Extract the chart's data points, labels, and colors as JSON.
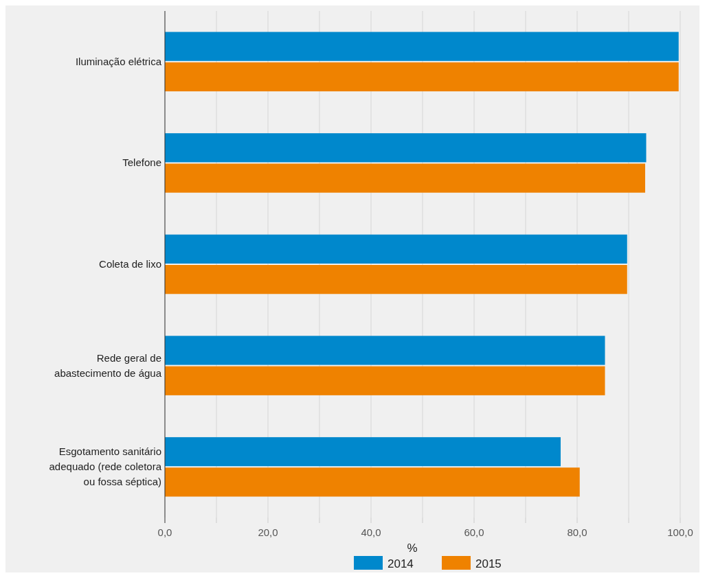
{
  "chart_data": {
    "type": "bar",
    "orientation": "horizontal",
    "xlabel": "%",
    "categories": [
      "Iluminação elétrica",
      "Telefone",
      "Coleta de lixo",
      "Rede geral de abastecimento de água",
      "Esgotamento sanitário adequado (rede coletora ou fossa séptica)"
    ],
    "series": [
      {
        "name": "2014",
        "color": "#0088cc",
        "values": [
          99.7,
          93.4,
          89.7,
          85.4,
          76.8
        ]
      },
      {
        "name": "2015",
        "color": "#ef8200",
        "values": [
          99.7,
          93.2,
          89.7,
          85.4,
          80.5
        ]
      }
    ],
    "xlim": [
      0,
      100
    ],
    "xticks": [
      {
        "value": 0,
        "label": "0,0"
      },
      {
        "value": 10,
        "label": null
      },
      {
        "value": 20,
        "label": "20,0"
      },
      {
        "value": 30,
        "label": null
      },
      {
        "value": 40,
        "label": "40,0"
      },
      {
        "value": 50,
        "label": null
      },
      {
        "value": 60,
        "label": "60,0"
      },
      {
        "value": 70,
        "label": null
      },
      {
        "value": 80,
        "label": "80,0"
      },
      {
        "value": 90,
        "label": null
      },
      {
        "value": 100,
        "label": "100,0"
      }
    ],
    "grid": "x",
    "legend": "bottom"
  }
}
